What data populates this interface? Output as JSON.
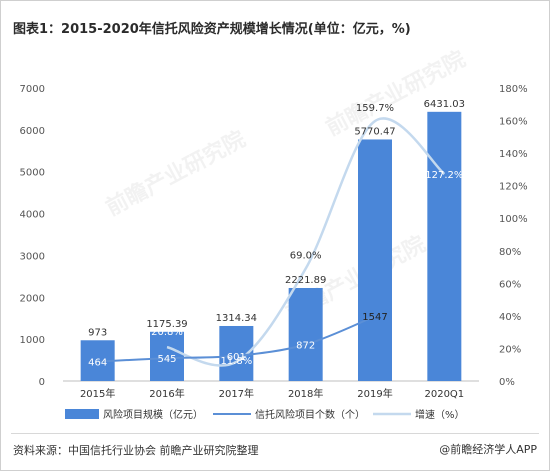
{
  "title": "图表1：2015-2020年信托风险资产规模增长情况(单位：亿元，%)",
  "source": "资料来源：中国信托行业协会 前瞻产业研究院整理",
  "brand": "@前瞻经济学人APP",
  "watermark": "前瞻产业研究院",
  "colors": {
    "bar": "#4a86d8",
    "count_line": "#5b8fd6",
    "growth_line": "#c4d9ee",
    "axis_text": "#555555"
  },
  "chart_data": {
    "type": "bar",
    "categories": [
      "2015年",
      "2016年",
      "2017年",
      "2018年",
      "2019年",
      "2020Q1"
    ],
    "y_left": {
      "ticks": [
        0,
        1000,
        2000,
        3000,
        4000,
        5000,
        6000,
        7000
      ],
      "range": [
        0,
        7000
      ]
    },
    "y_right": {
      "ticks": [
        "0%",
        "20%",
        "40%",
        "60%",
        "80%",
        "100%",
        "120%",
        "140%",
        "160%",
        "180%"
      ],
      "range": [
        0,
        180
      ]
    },
    "grid": false,
    "legend_position": "bottom",
    "series": [
      {
        "name": "风险项目规模（亿元）",
        "type": "bar",
        "axis": "left",
        "values": [
          973,
          1175.39,
          1314.34,
          2221.89,
          5770.47,
          6431.03
        ],
        "labels": [
          "973",
          "1175.39",
          "1314.34",
          "2221.89",
          "5770.47",
          "6431.03"
        ]
      },
      {
        "name": "信托风险项目个数（个）",
        "type": "line",
        "axis": "left",
        "values": [
          464,
          545,
          601,
          872,
          1547,
          null
        ],
        "labels": [
          "464",
          "545",
          "601",
          "872",
          "1547",
          ""
        ]
      },
      {
        "name": "增速（%）",
        "type": "line",
        "axis": "right",
        "values": [
          null,
          20.8,
          11.8,
          69.0,
          159.7,
          127.2
        ],
        "labels": [
          "",
          "20.8%",
          "11.8%",
          "69.0%",
          "159.7%",
          "127.2%"
        ]
      }
    ]
  }
}
